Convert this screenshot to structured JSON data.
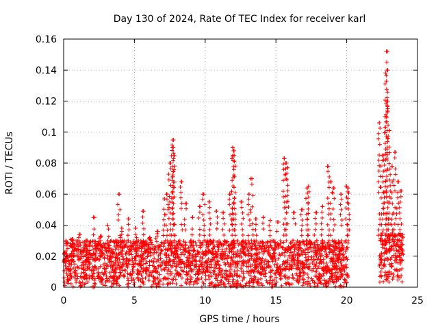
{
  "chart_data": {
    "type": "scatter",
    "title": "Day 130 of 2024, Rate Of TEC Index for receiver karl",
    "xlabel": "GPS time / hours",
    "ylabel": "ROTI / TECUs",
    "xlim": [
      0,
      25
    ],
    "ylim": [
      0,
      0.16
    ],
    "x_ticks": [
      0,
      5,
      10,
      15,
      20,
      25
    ],
    "y_ticks": [
      0,
      0.02,
      0.04,
      0.06,
      0.08,
      0.1,
      0.12,
      0.14,
      0.16
    ],
    "x_tick_labels": [
      "0",
      "5",
      "10",
      "15",
      "20",
      "25"
    ],
    "y_tick_labels": [
      "0",
      "0.02",
      "0.04",
      "0.06",
      "0.08",
      "0.1",
      "0.12",
      "0.14",
      "0.16"
    ],
    "grid": true,
    "marker": "+",
    "marker_color": "#ff0000",
    "series": [
      {
        "name": "ROTI",
        "x": [
          0.2,
          0.6,
          1.1,
          1.6,
          2.1,
          2.6,
          3.1,
          3.6,
          3.9,
          4.1,
          4.6,
          5.1,
          5.6,
          6.1,
          6.6,
          7.1,
          7.3,
          7.5,
          7.7,
          7.75,
          7.8,
          8.3,
          8.6,
          9.1,
          9.6,
          9.9,
          10.3,
          10.8,
          11.3,
          11.8,
          11.95,
          12.0,
          12.05,
          12.6,
          13.1,
          13.3,
          13.6,
          14.1,
          14.6,
          15.1,
          15.6,
          15.75,
          15.8,
          16.3,
          16.8,
          17.2,
          17.3,
          17.8,
          18.3,
          18.7,
          18.9,
          19.1,
          19.6,
          20.0,
          20.1,
          22.3,
          22.5,
          22.7,
          22.8,
          22.85,
          22.9,
          23.0,
          23.2,
          23.4,
          23.6,
          23.8
        ],
        "y": [
          0.028,
          0.031,
          0.034,
          0.03,
          0.045,
          0.033,
          0.04,
          0.029,
          0.06,
          0.038,
          0.044,
          0.038,
          0.049,
          0.032,
          0.036,
          0.057,
          0.06,
          0.08,
          0.095,
          0.09,
          0.085,
          0.068,
          0.054,
          0.045,
          0.052,
          0.06,
          0.055,
          0.049,
          0.048,
          0.06,
          0.09,
          0.088,
          0.085,
          0.055,
          0.06,
          0.07,
          0.044,
          0.045,
          0.043,
          0.042,
          0.083,
          0.08,
          0.077,
          0.048,
          0.05,
          0.064,
          0.065,
          0.048,
          0.052,
          0.078,
          0.068,
          0.064,
          0.06,
          0.065,
          0.064,
          0.106,
          0.085,
          0.11,
          0.152,
          0.14,
          0.12,
          0.101,
          0.078,
          0.087,
          0.068,
          0.062
        ],
        "band": {
          "note": "dense background of ROTI values between the listed lower and upper bounds",
          "segments": [
            {
              "x_start": 0,
              "x_end": 20.1,
              "y_low": 0.0,
              "y_high": 0.03
            },
            {
              "x_start": 22.3,
              "x_end": 24.0,
              "y_low": 0.003,
              "y_high": 0.035
            }
          ]
        }
      }
    ]
  }
}
